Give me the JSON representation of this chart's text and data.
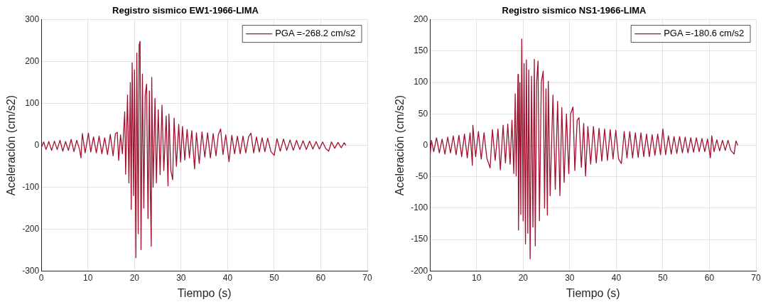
{
  "chart_data": [
    {
      "type": "line",
      "title": "Registro sismico EW1-1966-LIMA",
      "xlabel": "Tiempo (s)",
      "ylabel": "Aceleración (cm/s2)",
      "xlim": [
        0,
        70
      ],
      "xticks": [
        0,
        10,
        20,
        30,
        40,
        50,
        60,
        70
      ],
      "ylim": [
        -300,
        300
      ],
      "yticks": [
        -300,
        -200,
        -100,
        0,
        100,
        200,
        300
      ],
      "grid": true,
      "legend": "top right",
      "marker": "none",
      "line_style": "solid",
      "series": [
        {
          "name": "PGA =-268.2 cm/s2",
          "color": "#a0122f",
          "x": [
            0,
            0.5,
            1,
            1.6,
            2.2,
            2.8,
            3.4,
            4,
            4.6,
            5.2,
            5.8,
            6.4,
            7,
            7.6,
            8.2,
            8.5,
            8.8,
            9.4,
            10.1,
            10.6,
            11.2,
            11.8,
            12.4,
            13,
            13.6,
            14.2,
            14.8,
            15.4,
            15.9,
            16.3,
            16.6,
            17,
            17.4,
            17.9,
            18.1,
            18.5,
            18.8,
            19.1,
            19.3,
            19.5,
            19.8,
            20.0,
            20.3,
            20.5,
            20.8,
            21.0,
            21.2,
            21.4,
            21.7,
            22.0,
            22.3,
            22.6,
            22.9,
            23.2,
            23.4,
            23.6,
            23.7,
            24.0,
            24.4,
            24.7,
            25.1,
            25.5,
            25.9,
            26.3,
            26.8,
            27.2,
            27.4,
            27.8,
            28.2,
            28.5,
            29,
            29.5,
            29.9,
            30.3,
            30.8,
            31.3,
            31.8,
            32.3,
            32.9,
            33.3,
            33.9,
            34.5,
            35.1,
            35.7,
            36.3,
            36.9,
            37.5,
            38,
            38.5,
            39,
            39.6,
            40.3,
            40.9,
            41.5,
            42.1,
            42.7,
            43.3,
            43.9,
            44.5,
            45,
            45.6,
            46.2,
            46.8,
            47.4,
            48,
            48.6,
            49.3,
            50,
            50.6,
            51.3,
            52,
            52.7,
            53.4,
            54.1,
            54.8,
            55.5,
            56.2,
            56.9,
            57.6,
            58.3,
            59,
            59.7,
            60.4,
            61.1,
            61.7,
            62.3,
            63,
            63.7,
            64.4,
            65,
            65.4
          ],
          "values": [
            -5,
            8,
            -10,
            9,
            -12,
            10,
            -10,
            12,
            -14,
            9,
            -12,
            14,
            -15,
            12,
            -10,
            -30,
            28,
            -18,
            29,
            -16,
            20,
            -18,
            22,
            -20,
            18,
            -22,
            26,
            -25,
            28,
            31,
            -36,
            25,
            -20,
            80,
            -69,
            120,
            -90,
            150,
            -153,
            197,
            -120,
            180,
            -268.2,
            220,
            -211,
            240,
            248,
            -249,
            170,
            -150,
            120,
            146,
            -175,
            130,
            -110,
            -241,
            162,
            -100,
            112,
            -90,
            85,
            -70,
            96,
            -60,
            70,
            -97,
            75,
            -60,
            -82,
            65,
            -50,
            50,
            -40,
            45,
            -35,
            38,
            -30,
            35,
            -56,
            30,
            -43,
            32,
            -28,
            30,
            -30,
            28,
            -25,
            25,
            39,
            -22,
            25,
            -39,
            24,
            -20,
            22,
            -20,
            22,
            -18,
            20,
            29,
            -18,
            20,
            -16,
            18,
            -15,
            17,
            -15,
            -24,
            16,
            -14,
            15,
            -12,
            13,
            -12,
            12,
            -10,
            11,
            -10,
            10,
            -9,
            9,
            -9,
            8,
            -8,
            -14,
            8,
            -7,
            7,
            -6,
            6,
            0
          ]
        }
      ]
    },
    {
      "type": "line",
      "title": "Registro sismico NS1-1966-LIMA",
      "xlabel": "Tiempo (s)",
      "ylabel": "Aceleración (cm/s2)",
      "xlim": [
        0,
        70
      ],
      "xticks": [
        0,
        10,
        20,
        30,
        40,
        50,
        60,
        70
      ],
      "ylim": [
        -200,
        200
      ],
      "yticks": [
        -200,
        -150,
        -100,
        -50,
        0,
        50,
        100,
        150,
        200
      ],
      "grid": true,
      "legend": "top right",
      "marker": "none",
      "line_style": "solid",
      "series": [
        {
          "name": "PGA =-180.6 cm/s2",
          "color": "#a0122f",
          "x": [
            0,
            0.3,
            0.8,
            1.4,
            2,
            2.6,
            3.2,
            3.8,
            4.4,
            5,
            5.6,
            6.2,
            6.8,
            7.4,
            8,
            8.6,
            9.1,
            9.2,
            9.8,
            10.4,
            11,
            11.6,
            12.2,
            12.9,
            13.4,
            14,
            14.6,
            15.1,
            15.7,
            16.2,
            16.7,
            17.2,
            17.6,
            18,
            18.3,
            18.5,
            18.9,
            19.0,
            19.3,
            19.5,
            19.7,
            20.0,
            20.2,
            20.5,
            20.7,
            21.0,
            21.2,
            21.5,
            21.8,
            22.1,
            22.4,
            22.6,
            22.9,
            23.2,
            23.5,
            23.9,
            24.3,
            24.6,
            24.9,
            25.2,
            25.4,
            25.8,
            26.4,
            26.9,
            27.4,
            27.9,
            28.3,
            28.8,
            29.3,
            29.8,
            30.2,
            30.7,
            31.1,
            31.6,
            32,
            32.5,
            33,
            33.4,
            33.9,
            34.5,
            35.1,
            35.7,
            36.3,
            36.9,
            37.5,
            38.1,
            38.7,
            39.3,
            39.9,
            40.5,
            41.1,
            41.7,
            42.3,
            42.9,
            43.5,
            44.1,
            44.7,
            45.3,
            45.9,
            46.5,
            47.1,
            47.7,
            48.3,
            48.9,
            49.5,
            50,
            50.6,
            51.2,
            51.8,
            52.4,
            53,
            53.6,
            54.2,
            54.8,
            55.4,
            56,
            56.6,
            57.2,
            57.8,
            58.4,
            59,
            59.6,
            60.2,
            60.5,
            61,
            61.6,
            62.2,
            62.8,
            63.4,
            64,
            64.6,
            65.3,
            65.7,
            66.1
          ],
          "values": [
            -18,
            8,
            -10,
            12,
            -12,
            10,
            -14,
            13,
            -12,
            15,
            -15,
            16,
            -18,
            18,
            -20,
            20,
            -32,
            32,
            -18,
            22,
            -22,
            20,
            -20,
            -36,
            25,
            -24,
            26,
            -39,
            32,
            -28,
            34,
            -30,
            40,
            -45,
            82,
            -49,
            113,
            -135,
            100,
            -110,
            169,
            -120,
            130,
            -157,
            136,
            -140,
            120,
            -180.6,
            110,
            -130,
            137,
            -160,
            100,
            134,
            -120,
            100,
            118,
            -100,
            90,
            -111,
            102,
            -80,
            80,
            -70,
            70,
            -80,
            60,
            -59,
            50,
            -45,
            50,
            61,
            -40,
            40,
            44,
            -35,
            35,
            -49,
            30,
            -30,
            30,
            -28,
            27,
            -25,
            26,
            -24,
            25,
            -22,
            24,
            -22,
            -29,
            22,
            -20,
            22,
            -20,
            20,
            -19,
            20,
            -18,
            18,
            -18,
            17,
            -16,
            18,
            -15,
            26,
            -15,
            15,
            -14,
            14,
            -13,
            14,
            -12,
            13,
            -12,
            12,
            -11,
            12,
            -10,
            11,
            -10,
            10,
            -20,
            15,
            -10,
            9,
            -9,
            8,
            -8,
            8,
            -8,
            -14,
            7,
            0
          ]
        }
      ]
    }
  ]
}
